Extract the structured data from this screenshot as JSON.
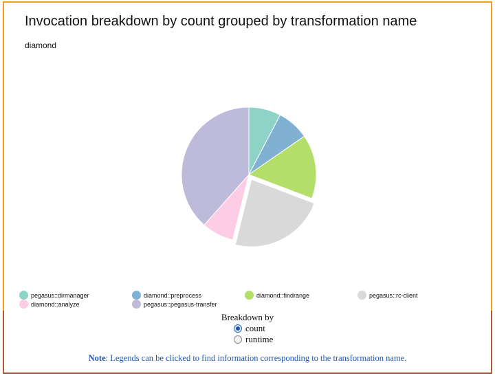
{
  "chart_data": {
    "type": "pie",
    "title": "Invocation breakdown by count grouped by transformation name",
    "subtitle": "diamond",
    "slices": [
      {
        "name": "pegasus::dirmanager",
        "value": 2,
        "color": "#8dd3c7"
      },
      {
        "name": "diamond::preprocess",
        "value": 2,
        "color": "#80b1d3"
      },
      {
        "name": "diamond::findrange",
        "value": 4,
        "color": "#b3de69"
      },
      {
        "name": "pegasus::rc-client",
        "value": 6,
        "color": "#d9d9d9"
      },
      {
        "name": "diamond::analyze",
        "value": 2,
        "color": "#fccde5"
      },
      {
        "name": "pegasus::pegasus-transfer",
        "value": 10,
        "color": "#bebada"
      }
    ],
    "exploded_slices": [
      "pegasus::rc-client"
    ],
    "legend": [
      "pegasus::dirmanager",
      "diamond::preprocess",
      "diamond::findrange",
      "pegasus::rc-client",
      "diamond::analyze",
      "pegasus::pegasus-transfer"
    ],
    "legend_position": "bottom"
  },
  "controls": {
    "breakdown_label": "Breakdown by",
    "options": [
      {
        "label": "count",
        "selected": true
      },
      {
        "label": "runtime",
        "selected": false
      }
    ],
    "note_label": "Note",
    "note_text": ": Legends can be clicked to find information corresponding to the transformation name."
  }
}
